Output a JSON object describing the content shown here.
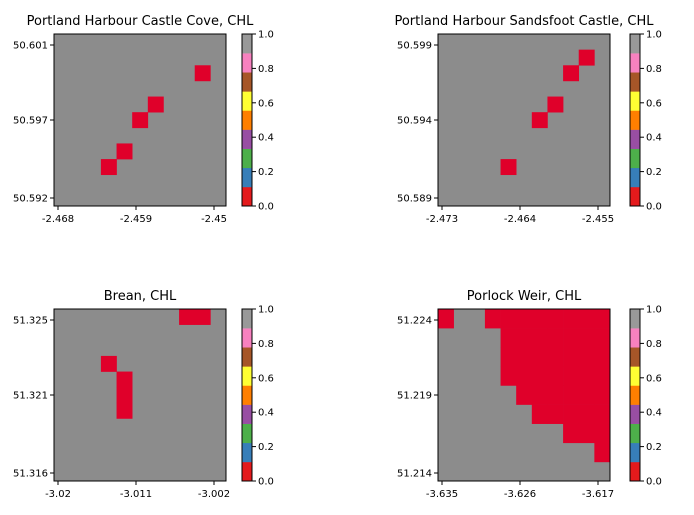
{
  "colorbar": {
    "ticks": [
      "0.0",
      "0.2",
      "0.4",
      "0.6",
      "0.8",
      "1.0"
    ],
    "colors": [
      "#e41a1c",
      "#377eb8",
      "#4daf4a",
      "#984ea3",
      "#ff7f00",
      "#ffff33",
      "#a65628",
      "#f781bf",
      "#999999"
    ]
  },
  "mask_colors": {
    "water": "#8c8c8c",
    "flagged": "#e0002a"
  },
  "chart_data": [
    {
      "type": "heatmap",
      "title": "Portland Harbour Castle Cove, CHL",
      "x_ticks": [
        "-2.468",
        "-2.459",
        "-2.45"
      ],
      "y_ticks": [
        "50.601",
        "50.597",
        "50.592"
      ],
      "grid_cols": 11,
      "grid_rows": 11,
      "cells": [
        [
          9,
          2
        ],
        [
          6,
          4
        ],
        [
          5,
          5
        ],
        [
          4,
          7
        ],
        [
          3,
          8
        ]
      ],
      "value_range": [
        0,
        1
      ]
    },
    {
      "type": "heatmap",
      "title": "Portland Harbour Sandsfoot Castle, CHL",
      "x_ticks": [
        "-2.473",
        "-2.464",
        "-2.455"
      ],
      "y_ticks": [
        "50.599",
        "50.594",
        "50.589"
      ],
      "grid_cols": 11,
      "grid_rows": 11,
      "cells": [
        [
          9,
          1
        ],
        [
          8,
          2
        ],
        [
          7,
          4
        ],
        [
          6,
          5
        ],
        [
          4,
          8
        ]
      ],
      "value_range": [
        0,
        1
      ]
    },
    {
      "type": "heatmap",
      "title": "Brean, CHL",
      "x_ticks": [
        "-3.02",
        "-3.011",
        "-3.002"
      ],
      "y_ticks": [
        "51.325",
        "51.321",
        "51.316"
      ],
      "grid_cols": 11,
      "grid_rows": 11,
      "cells": [
        [
          8,
          0
        ],
        [
          9,
          0
        ],
        [
          3,
          3
        ],
        [
          4,
          4
        ],
        [
          4,
          5
        ],
        [
          4,
          6
        ]
      ],
      "value_range": [
        0,
        1
      ]
    },
    {
      "type": "heatmap",
      "title": "Porlock Weir, CHL",
      "x_ticks": [
        "-3.635",
        "-3.626",
        "-3.617"
      ],
      "y_ticks": [
        "51.224",
        "51.219",
        "51.214"
      ],
      "grid_cols": 11,
      "grid_rows": 9,
      "cells": [
        [
          0,
          0
        ],
        [
          3,
          0
        ],
        [
          4,
          0
        ],
        [
          5,
          0
        ],
        [
          6,
          0
        ],
        [
          7,
          0
        ],
        [
          8,
          0
        ],
        [
          9,
          0
        ],
        [
          10,
          0
        ],
        [
          4,
          1
        ],
        [
          5,
          1
        ],
        [
          6,
          1
        ],
        [
          7,
          1
        ],
        [
          8,
          1
        ],
        [
          9,
          1
        ],
        [
          10,
          1
        ],
        [
          4,
          2
        ],
        [
          5,
          2
        ],
        [
          6,
          2
        ],
        [
          7,
          2
        ],
        [
          8,
          2
        ],
        [
          9,
          2
        ],
        [
          10,
          2
        ],
        [
          4,
          3
        ],
        [
          5,
          3
        ],
        [
          6,
          3
        ],
        [
          7,
          3
        ],
        [
          8,
          3
        ],
        [
          9,
          3
        ],
        [
          10,
          3
        ],
        [
          5,
          4
        ],
        [
          6,
          4
        ],
        [
          7,
          4
        ],
        [
          8,
          4
        ],
        [
          9,
          4
        ],
        [
          10,
          4
        ],
        [
          6,
          5
        ],
        [
          7,
          5
        ],
        [
          8,
          5
        ],
        [
          9,
          5
        ],
        [
          10,
          5
        ],
        [
          8,
          6
        ],
        [
          9,
          6
        ],
        [
          10,
          6
        ],
        [
          10,
          7
        ]
      ],
      "value_range": [
        0,
        1
      ]
    }
  ]
}
